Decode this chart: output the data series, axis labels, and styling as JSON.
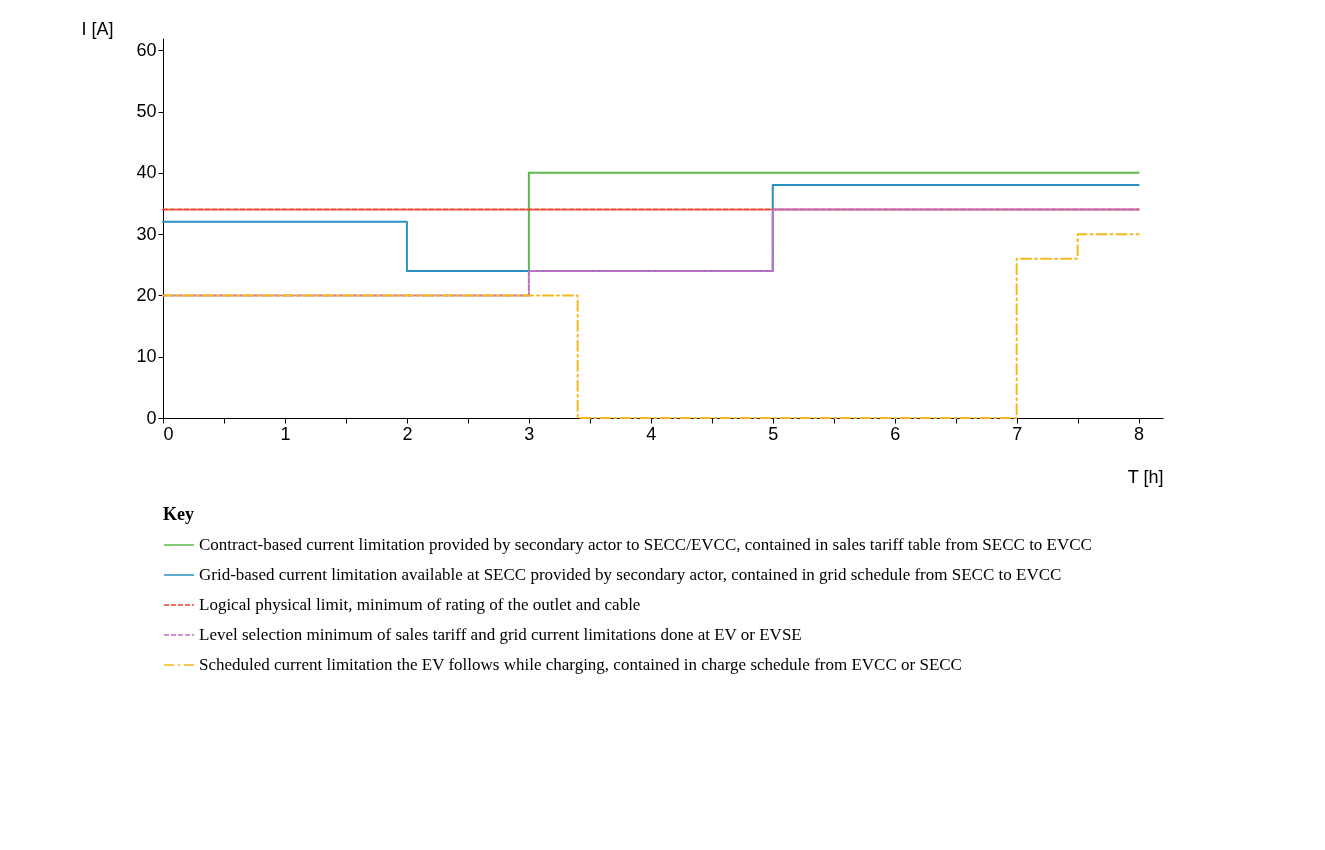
{
  "chart_data": {
    "type": "step",
    "xlabel": "T [h]",
    "ylabel": "I [A]",
    "legend_title": "Key",
    "legend": "bottom",
    "grid": false,
    "xlim": [
      0,
      8.2
    ],
    "ylim": [
      0,
      62
    ],
    "xticks": [
      0,
      {
        "value": 0.5,
        "label": null
      },
      1,
      {
        "value": 1.5,
        "label": null
      },
      2,
      {
        "value": 2.5,
        "label": null
      },
      3,
      {
        "value": 3.5,
        "label": null
      },
      4,
      {
        "value": 4.5,
        "label": null
      },
      5,
      {
        "value": 5.5,
        "label": null
      },
      6,
      {
        "value": 6.5,
        "label": null
      },
      7,
      {
        "value": 7.5,
        "label": null
      },
      8
    ],
    "yticks": [
      0,
      10,
      20,
      30,
      40,
      50,
      60
    ],
    "series": [
      {
        "name": "Contract-based current limitation provided by secondary actor to SECC/EVCC, contained in sales tariff table from SECC to EVCC",
        "color": "#5cb847",
        "line_style": "solid",
        "x": [
          3,
          3,
          8
        ],
        "values": [
          24,
          40,
          40
        ]
      },
      {
        "name": "Grid-based current limitation available at SECC provided by secondary actor, contained in grid schedule from SECC to EVCC",
        "color": "#2a8fc0",
        "line_style": "solid",
        "x": [
          0,
          2,
          5,
          8
        ],
        "values": [
          32,
          24,
          38,
          38
        ]
      },
      {
        "name": "Logical physical limit, minimum of rating of the outlet and cable",
        "color": "#e8452c",
        "line_style": "dashed",
        "x": [
          0,
          8
        ],
        "values": [
          34,
          34
        ]
      },
      {
        "name": "Level selection minimum of sales tariff and grid current limitations done at EV or EVSE",
        "color": "#c070c0",
        "line_style": "dashed",
        "x": [
          0,
          3,
          5,
          8
        ],
        "values": [
          20,
          24,
          34,
          34
        ]
      },
      {
        "name": "Scheduled current limitation the EV follows while charging, contained in charge schedule from EVCC or SECC",
        "color": "#f5b818",
        "line_style": "dashdot",
        "x": [
          0,
          3.4,
          7,
          7.5,
          8
        ],
        "values": [
          20,
          0,
          26,
          30,
          30
        ]
      }
    ]
  }
}
